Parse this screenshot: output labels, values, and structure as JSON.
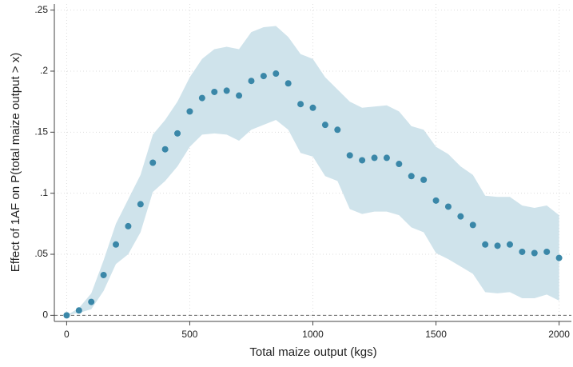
{
  "chart_data": {
    "type": "scatter",
    "x_label": "Total maize output (kgs)",
    "y_label": "Effect of 1AF on P(total maize output > x)",
    "x": [
      0,
      50,
      100,
      150,
      200,
      250,
      300,
      350,
      400,
      450,
      500,
      550,
      600,
      650,
      700,
      750,
      800,
      850,
      900,
      950,
      1000,
      1050,
      1100,
      1150,
      1200,
      1250,
      1300,
      1350,
      1400,
      1450,
      1500,
      1550,
      1600,
      1650,
      1700,
      1750,
      1800,
      1850,
      1900,
      1950,
      2000
    ],
    "values": [
      0,
      0.004,
      0.011,
      0.033,
      0.058,
      0.073,
      0.091,
      0.125,
      0.136,
      0.149,
      0.167,
      0.178,
      0.183,
      0.184,
      0.18,
      0.192,
      0.196,
      0.198,
      0.19,
      0.173,
      0.17,
      0.156,
      0.152,
      0.131,
      0.127,
      0.129,
      0.129,
      0.124,
      0.114,
      0.111,
      0.094,
      0.089,
      0.081,
      0.074,
      0.058,
      0.057,
      0.058,
      0.052,
      0.051,
      0.052,
      0.047
    ],
    "upper": [
      0,
      0.006,
      0.018,
      0.045,
      0.075,
      0.095,
      0.115,
      0.148,
      0.16,
      0.175,
      0.195,
      0.21,
      0.218,
      0.22,
      0.218,
      0.232,
      0.236,
      0.237,
      0.228,
      0.214,
      0.21,
      0.195,
      0.185,
      0.175,
      0.17,
      0.171,
      0.172,
      0.167,
      0.155,
      0.152,
      0.138,
      0.132,
      0.122,
      0.115,
      0.098,
      0.097,
      0.097,
      0.09,
      0.088,
      0.09,
      0.082
    ],
    "lower": [
      0,
      0.002,
      0.005,
      0.02,
      0.042,
      0.05,
      0.068,
      0.101,
      0.11,
      0.122,
      0.138,
      0.148,
      0.149,
      0.148,
      0.143,
      0.152,
      0.156,
      0.16,
      0.152,
      0.133,
      0.13,
      0.114,
      0.11,
      0.087,
      0.083,
      0.085,
      0.085,
      0.082,
      0.072,
      0.068,
      0.051,
      0.046,
      0.04,
      0.034,
      0.019,
      0.018,
      0.019,
      0.014,
      0.014,
      0.017,
      0.012
    ],
    "color": "#3a87a8",
    "band_color": "#cfe3eb",
    "xlim": [
      -50,
      2050
    ],
    "ylim": [
      -0.005,
      0.255
    ],
    "xticks": [
      0,
      500,
      1000,
      1500,
      2000
    ],
    "yticks": [
      0,
      {
        "value": 0.05,
        "label": ".05"
      },
      {
        "value": 0.1,
        "label": ".1"
      },
      {
        "value": 0.15,
        "label": ".15"
      },
      {
        "value": 0.2,
        "label": ".2"
      },
      {
        "value": 0.25,
        "label": ".25"
      }
    ],
    "reference_line": 0,
    "grid": true
  }
}
